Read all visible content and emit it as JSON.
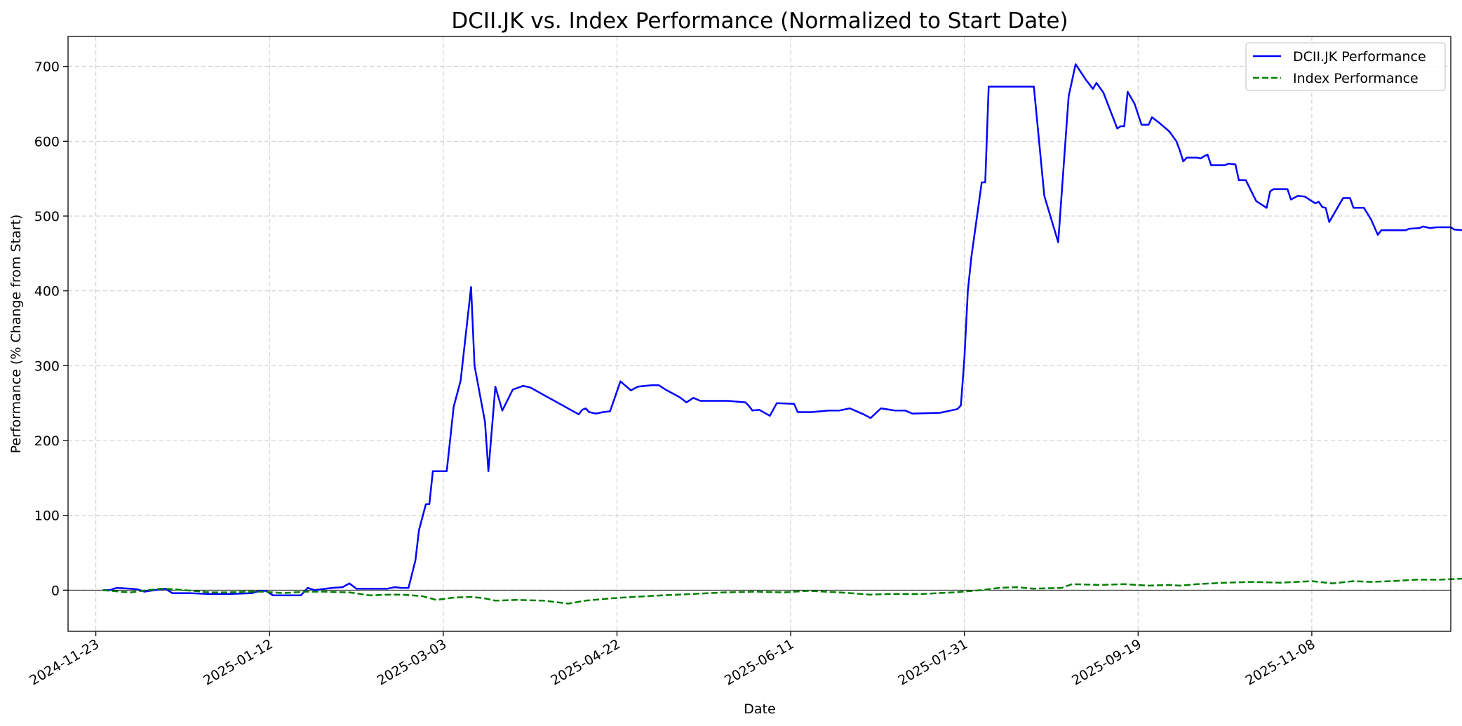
{
  "chart_data": {
    "type": "line",
    "title": "DCII.JK vs. Index Performance (Normalized to Start Date)",
    "xlabel": "Date",
    "ylabel": "Performance (% Change from Start)",
    "xlim": [
      "2024-11-15",
      "2025-12-18"
    ],
    "ylim": [
      -55,
      740
    ],
    "x_ticks": [
      "2024-11-23",
      "2025-01-12",
      "2025-03-03",
      "2025-04-22",
      "2025-06-11",
      "2025-07-31",
      "2025-09-19",
      "2025-11-08"
    ],
    "y_ticks": [
      0,
      100,
      200,
      300,
      400,
      500,
      600,
      700
    ],
    "grid": true,
    "zero_line": true,
    "legend": "top-right",
    "colors": {
      "stock": "#0000ff",
      "index": "#008000"
    },
    "series": [
      {
        "name": "DCII.JK Performance",
        "style": "solid",
        "points": [
          [
            "2024-11-25",
            0
          ],
          [
            "2024-11-27",
            0
          ],
          [
            "2024-11-29",
            3
          ],
          [
            "2024-12-03",
            2
          ],
          [
            "2024-12-05",
            1
          ],
          [
            "2024-12-07",
            -2
          ],
          [
            "2024-12-10",
            0
          ],
          [
            "2024-12-13",
            2
          ],
          [
            "2024-12-15",
            -4
          ],
          [
            "2024-12-20",
            -4
          ],
          [
            "2024-12-25",
            -5
          ],
          [
            "2025-01-01",
            -5
          ],
          [
            "2025-01-07",
            -4
          ],
          [
            "2025-01-09",
            -1
          ],
          [
            "2025-01-11",
            -1
          ],
          [
            "2025-01-13",
            -7
          ],
          [
            "2025-01-20",
            -7
          ],
          [
            "2025-01-21",
            -7
          ],
          [
            "2025-01-23",
            3
          ],
          [
            "2025-01-25",
            0
          ],
          [
            "2025-01-30",
            3
          ],
          [
            "2025-02-02",
            4
          ],
          [
            "2025-02-04",
            9
          ],
          [
            "2025-02-06",
            2
          ],
          [
            "2025-02-12",
            2
          ],
          [
            "2025-02-15",
            2
          ],
          [
            "2025-02-17",
            4
          ],
          [
            "2025-02-19",
            3
          ],
          [
            "2025-02-21",
            3
          ],
          [
            "2025-02-23",
            40
          ],
          [
            "2025-02-24",
            80
          ],
          [
            "2025-02-26",
            115
          ],
          [
            "2025-02-27",
            115
          ],
          [
            "2025-02-28",
            159
          ],
          [
            "2025-03-04",
            159
          ],
          [
            "2025-03-06",
            245
          ],
          [
            "2025-03-08",
            280
          ],
          [
            "2025-03-11",
            405
          ],
          [
            "2025-03-12",
            300
          ],
          [
            "2025-03-15",
            225
          ],
          [
            "2025-03-16",
            159
          ],
          [
            "2025-03-18",
            272
          ],
          [
            "2025-03-20",
            240
          ],
          [
            "2025-03-23",
            268
          ],
          [
            "2025-03-26",
            273
          ],
          [
            "2025-03-28",
            271
          ],
          [
            "2025-04-11",
            235
          ],
          [
            "2025-04-12",
            241
          ],
          [
            "2025-04-13",
            243
          ],
          [
            "2025-04-14",
            238
          ],
          [
            "2025-04-16",
            236
          ],
          [
            "2025-04-18",
            238
          ],
          [
            "2025-04-20",
            239
          ],
          [
            "2025-04-23",
            279
          ],
          [
            "2025-04-26",
            267
          ],
          [
            "2025-04-28",
            272
          ],
          [
            "2025-05-02",
            274
          ],
          [
            "2025-05-04",
            274
          ],
          [
            "2025-05-06",
            268
          ],
          [
            "2025-05-10",
            258
          ],
          [
            "2025-05-12",
            251
          ],
          [
            "2025-05-14",
            257
          ],
          [
            "2025-05-16",
            253
          ],
          [
            "2025-05-24",
            253
          ],
          [
            "2025-05-29",
            251
          ],
          [
            "2025-05-30",
            246
          ],
          [
            "2025-05-31",
            240
          ],
          [
            "2025-06-02",
            241
          ],
          [
            "2025-06-05",
            233
          ],
          [
            "2025-06-07",
            250
          ],
          [
            "2025-06-12",
            249
          ],
          [
            "2025-06-13",
            238
          ],
          [
            "2025-06-17",
            238
          ],
          [
            "2025-06-22",
            240
          ],
          [
            "2025-06-25",
            240
          ],
          [
            "2025-06-28",
            243
          ],
          [
            "2025-07-02",
            235
          ],
          [
            "2025-07-04",
            230
          ],
          [
            "2025-07-07",
            243
          ],
          [
            "2025-07-11",
            240
          ],
          [
            "2025-07-14",
            240
          ],
          [
            "2025-07-16",
            236
          ],
          [
            "2025-07-24",
            237
          ],
          [
            "2025-07-27",
            240
          ],
          [
            "2025-07-29",
            242
          ],
          [
            "2025-07-30",
            247
          ],
          [
            "2025-07-31",
            310
          ],
          [
            "2025-08-01",
            400
          ],
          [
            "2025-08-02",
            445
          ],
          [
            "2025-08-05",
            545
          ],
          [
            "2025-08-06",
            545
          ],
          [
            "2025-08-07",
            673
          ],
          [
            "2025-08-10",
            673
          ],
          [
            "2025-08-20",
            673
          ],
          [
            "2025-08-23",
            527
          ],
          [
            "2025-08-27",
            465
          ],
          [
            "2025-08-30",
            660
          ],
          [
            "2025-09-01",
            703
          ],
          [
            "2025-09-04",
            682
          ],
          [
            "2025-09-06",
            670
          ],
          [
            "2025-09-07",
            678
          ],
          [
            "2025-09-09",
            665
          ],
          [
            "2025-09-13",
            617
          ],
          [
            "2025-09-14",
            620
          ],
          [
            "2025-09-15",
            620
          ],
          [
            "2025-09-16",
            666
          ],
          [
            "2025-09-18",
            650
          ],
          [
            "2025-09-20",
            622
          ],
          [
            "2025-09-22",
            622
          ],
          [
            "2025-09-23",
            632
          ],
          [
            "2025-09-25",
            625
          ],
          [
            "2025-09-28",
            613
          ],
          [
            "2025-09-30",
            600
          ],
          [
            "2025-10-01",
            588
          ],
          [
            "2025-10-02",
            573
          ],
          [
            "2025-10-03",
            578
          ],
          [
            "2025-10-06",
            578
          ],
          [
            "2025-10-07",
            577
          ],
          [
            "2025-10-08",
            580
          ],
          [
            "2025-10-09",
            582
          ],
          [
            "2025-10-10",
            568
          ],
          [
            "2025-10-14",
            568
          ],
          [
            "2025-10-15",
            570
          ],
          [
            "2025-10-17",
            569
          ],
          [
            "2025-10-18",
            548
          ],
          [
            "2025-10-20",
            548
          ],
          [
            "2025-10-23",
            520
          ],
          [
            "2025-10-26",
            511
          ],
          [
            "2025-10-27",
            533
          ],
          [
            "2025-10-28",
            536
          ],
          [
            "2025-11-01",
            536
          ],
          [
            "2025-11-02",
            522
          ],
          [
            "2025-11-04",
            527
          ],
          [
            "2025-11-06",
            526
          ],
          [
            "2025-11-09",
            517
          ],
          [
            "2025-11-10",
            519
          ],
          [
            "2025-11-11",
            512
          ],
          [
            "2025-11-12",
            511
          ],
          [
            "2025-11-13",
            492
          ],
          [
            "2025-11-17",
            524
          ],
          [
            "2025-11-19",
            524
          ],
          [
            "2025-11-20",
            511
          ],
          [
            "2025-11-23",
            511
          ],
          [
            "2025-11-25",
            496
          ],
          [
            "2025-11-27",
            475
          ],
          [
            "2025-11-28",
            481
          ],
          [
            "2025-12-05",
            481
          ],
          [
            "2025-12-06",
            483
          ],
          [
            "2025-12-09",
            484
          ],
          [
            "2025-12-10",
            486
          ],
          [
            "2025-12-12",
            484
          ],
          [
            "2025-12-14",
            485
          ],
          [
            "2025-12-18",
            485
          ],
          [
            "2025-12-19",
            482
          ],
          [
            "2025-12-24",
            480
          ]
        ]
      },
      {
        "name": "Index Performance",
        "style": "dashed",
        "points": [
          [
            "2024-11-25",
            0
          ],
          [
            "2024-11-30",
            -2
          ],
          [
            "2024-12-03",
            -3
          ],
          [
            "2024-12-08",
            0
          ],
          [
            "2024-12-12",
            2
          ],
          [
            "2024-12-16",
            1
          ],
          [
            "2024-12-21",
            -1
          ],
          [
            "2024-12-26",
            -3
          ],
          [
            "2024-12-31",
            -3
          ],
          [
            "2025-01-05",
            -2
          ],
          [
            "2025-01-10",
            -2
          ],
          [
            "2025-01-16",
            -4
          ],
          [
            "2025-01-22",
            -2
          ],
          [
            "2025-01-28",
            -2
          ],
          [
            "2025-02-04",
            -3
          ],
          [
            "2025-02-10",
            -7
          ],
          [
            "2025-02-15",
            -6
          ],
          [
            "2025-02-19",
            -6
          ],
          [
            "2025-02-25",
            -8
          ],
          [
            "2025-03-01",
            -13
          ],
          [
            "2025-03-06",
            -10
          ],
          [
            "2025-03-11",
            -9
          ],
          [
            "2025-03-15",
            -11
          ],
          [
            "2025-03-18",
            -14
          ],
          [
            "2025-03-24",
            -13
          ],
          [
            "2025-04-01",
            -14
          ],
          [
            "2025-04-08",
            -18
          ],
          [
            "2025-04-13",
            -14
          ],
          [
            "2025-04-20",
            -11
          ],
          [
            "2025-04-27",
            -9
          ],
          [
            "2025-05-05",
            -7
          ],
          [
            "2025-05-14",
            -5
          ],
          [
            "2025-05-23",
            -3
          ],
          [
            "2025-06-01",
            -2
          ],
          [
            "2025-06-09",
            -3
          ],
          [
            "2025-06-16",
            -1
          ],
          [
            "2025-06-25",
            -3
          ],
          [
            "2025-07-04",
            -6
          ],
          [
            "2025-07-10",
            -5
          ],
          [
            "2025-07-19",
            -5
          ],
          [
            "2025-07-28",
            -3
          ],
          [
            "2025-08-05",
            0
          ],
          [
            "2025-08-10",
            3
          ],
          [
            "2025-08-15",
            4
          ],
          [
            "2025-08-20",
            2
          ],
          [
            "2025-08-28",
            3
          ],
          [
            "2025-08-31",
            8
          ],
          [
            "2025-09-08",
            7
          ],
          [
            "2025-09-15",
            8
          ],
          [
            "2025-09-22",
            6
          ],
          [
            "2025-09-28",
            7
          ],
          [
            "2025-10-01",
            6
          ],
          [
            "2025-10-06",
            8
          ],
          [
            "2025-10-14",
            10
          ],
          [
            "2025-10-22",
            11
          ],
          [
            "2025-10-30",
            10
          ],
          [
            "2025-11-08",
            12
          ],
          [
            "2025-11-14",
            9
          ],
          [
            "2025-11-20",
            12
          ],
          [
            "2025-11-25",
            11
          ],
          [
            "2025-12-01",
            12
          ],
          [
            "2025-12-08",
            14
          ],
          [
            "2025-12-15",
            14
          ],
          [
            "2025-12-24",
            16
          ]
        ]
      }
    ]
  }
}
